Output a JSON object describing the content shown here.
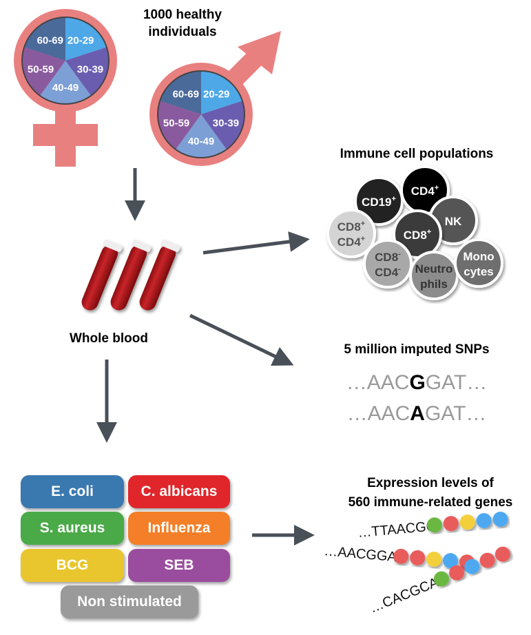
{
  "title": "1000 healthy individuals",
  "title_line1": "1000 healthy",
  "title_line2": "individuals",
  "age_groups": [
    "20-29",
    "30-39",
    "40-49",
    "50-59",
    "60-69"
  ],
  "age_colors": [
    "#4ea8e8",
    "#6a5db0",
    "#7c9fd6",
    "#8a5a9e",
    "#4a6a9a"
  ],
  "symbol_color": "#e98080",
  "whole_blood": "Whole blood",
  "immune": {
    "title": "Immune cell populations",
    "cells": [
      {
        "label": "CD19",
        "sup": "+",
        "color": "#222222",
        "text": "#ffffff"
      },
      {
        "label": "CD4",
        "sup": "+",
        "color": "#050505",
        "text": "#ffffff"
      },
      {
        "label": "NK",
        "sup": "",
        "color": "#555555",
        "text": "#ffffff"
      },
      {
        "label": "CD8",
        "sup": "+",
        "color": "#3a3a3a",
        "text": "#ffffff"
      },
      {
        "label": "CD8",
        "sup": "+",
        "label2": "CD4",
        "sup2": "+",
        "color": "#d4d4d4",
        "text": "#555555"
      },
      {
        "label": "CD8",
        "sup": "-",
        "label2": "CD4",
        "sup2": "-",
        "color": "#a8a8a8",
        "text": "#444444"
      },
      {
        "label": "Neutro",
        "label2": "phils",
        "color": "#8c8c8c",
        "text": "#333333"
      },
      {
        "label": "Mono",
        "label2": "cytes",
        "color": "#6e6e6e",
        "text": "#ffffff"
      }
    ]
  },
  "snps": {
    "title": "5 million imputed SNPs",
    "seq1": {
      "pre": "…AAC",
      "alt": "G",
      "post": "GAT…"
    },
    "seq2": {
      "pre": "…AAC",
      "alt": "A",
      "post": "GAT…"
    }
  },
  "stimuli": [
    {
      "label": "E. coli",
      "color": "#3a78b0"
    },
    {
      "label": "C. albicans",
      "color": "#e0262b"
    },
    {
      "label": "S. aureus",
      "color": "#4aaa48"
    },
    {
      "label": "Influenza",
      "color": "#f47f28"
    },
    {
      "label": "BCG",
      "color": "#e9c62e"
    },
    {
      "label": "SEB",
      "color": "#9a4d9e"
    },
    {
      "label": "Non stimulated",
      "color": "#9a9a9a"
    }
  ],
  "expression": {
    "title_line1": "Expression levels of",
    "title_line2": "560 immune-related genes",
    "rows": [
      {
        "seq": "…TTAACGG",
        "dots": [
          "#6bb843",
          "#e85c5c",
          "#f3cf3a",
          "#4ea8f0",
          "#4ea8f0"
        ]
      },
      {
        "seq": "…AACGGAT",
        "dots": [
          "#e85c5c",
          "#e85c5c",
          "#f3cf3a",
          "#4ea8f0",
          "#e85c5c"
        ]
      },
      {
        "seq": "…CACGCAA",
        "dots": [
          "#6bb843",
          "#e85c5c",
          "#4ea8f0",
          "#e85c5c",
          "#e85c5c"
        ]
      }
    ]
  }
}
